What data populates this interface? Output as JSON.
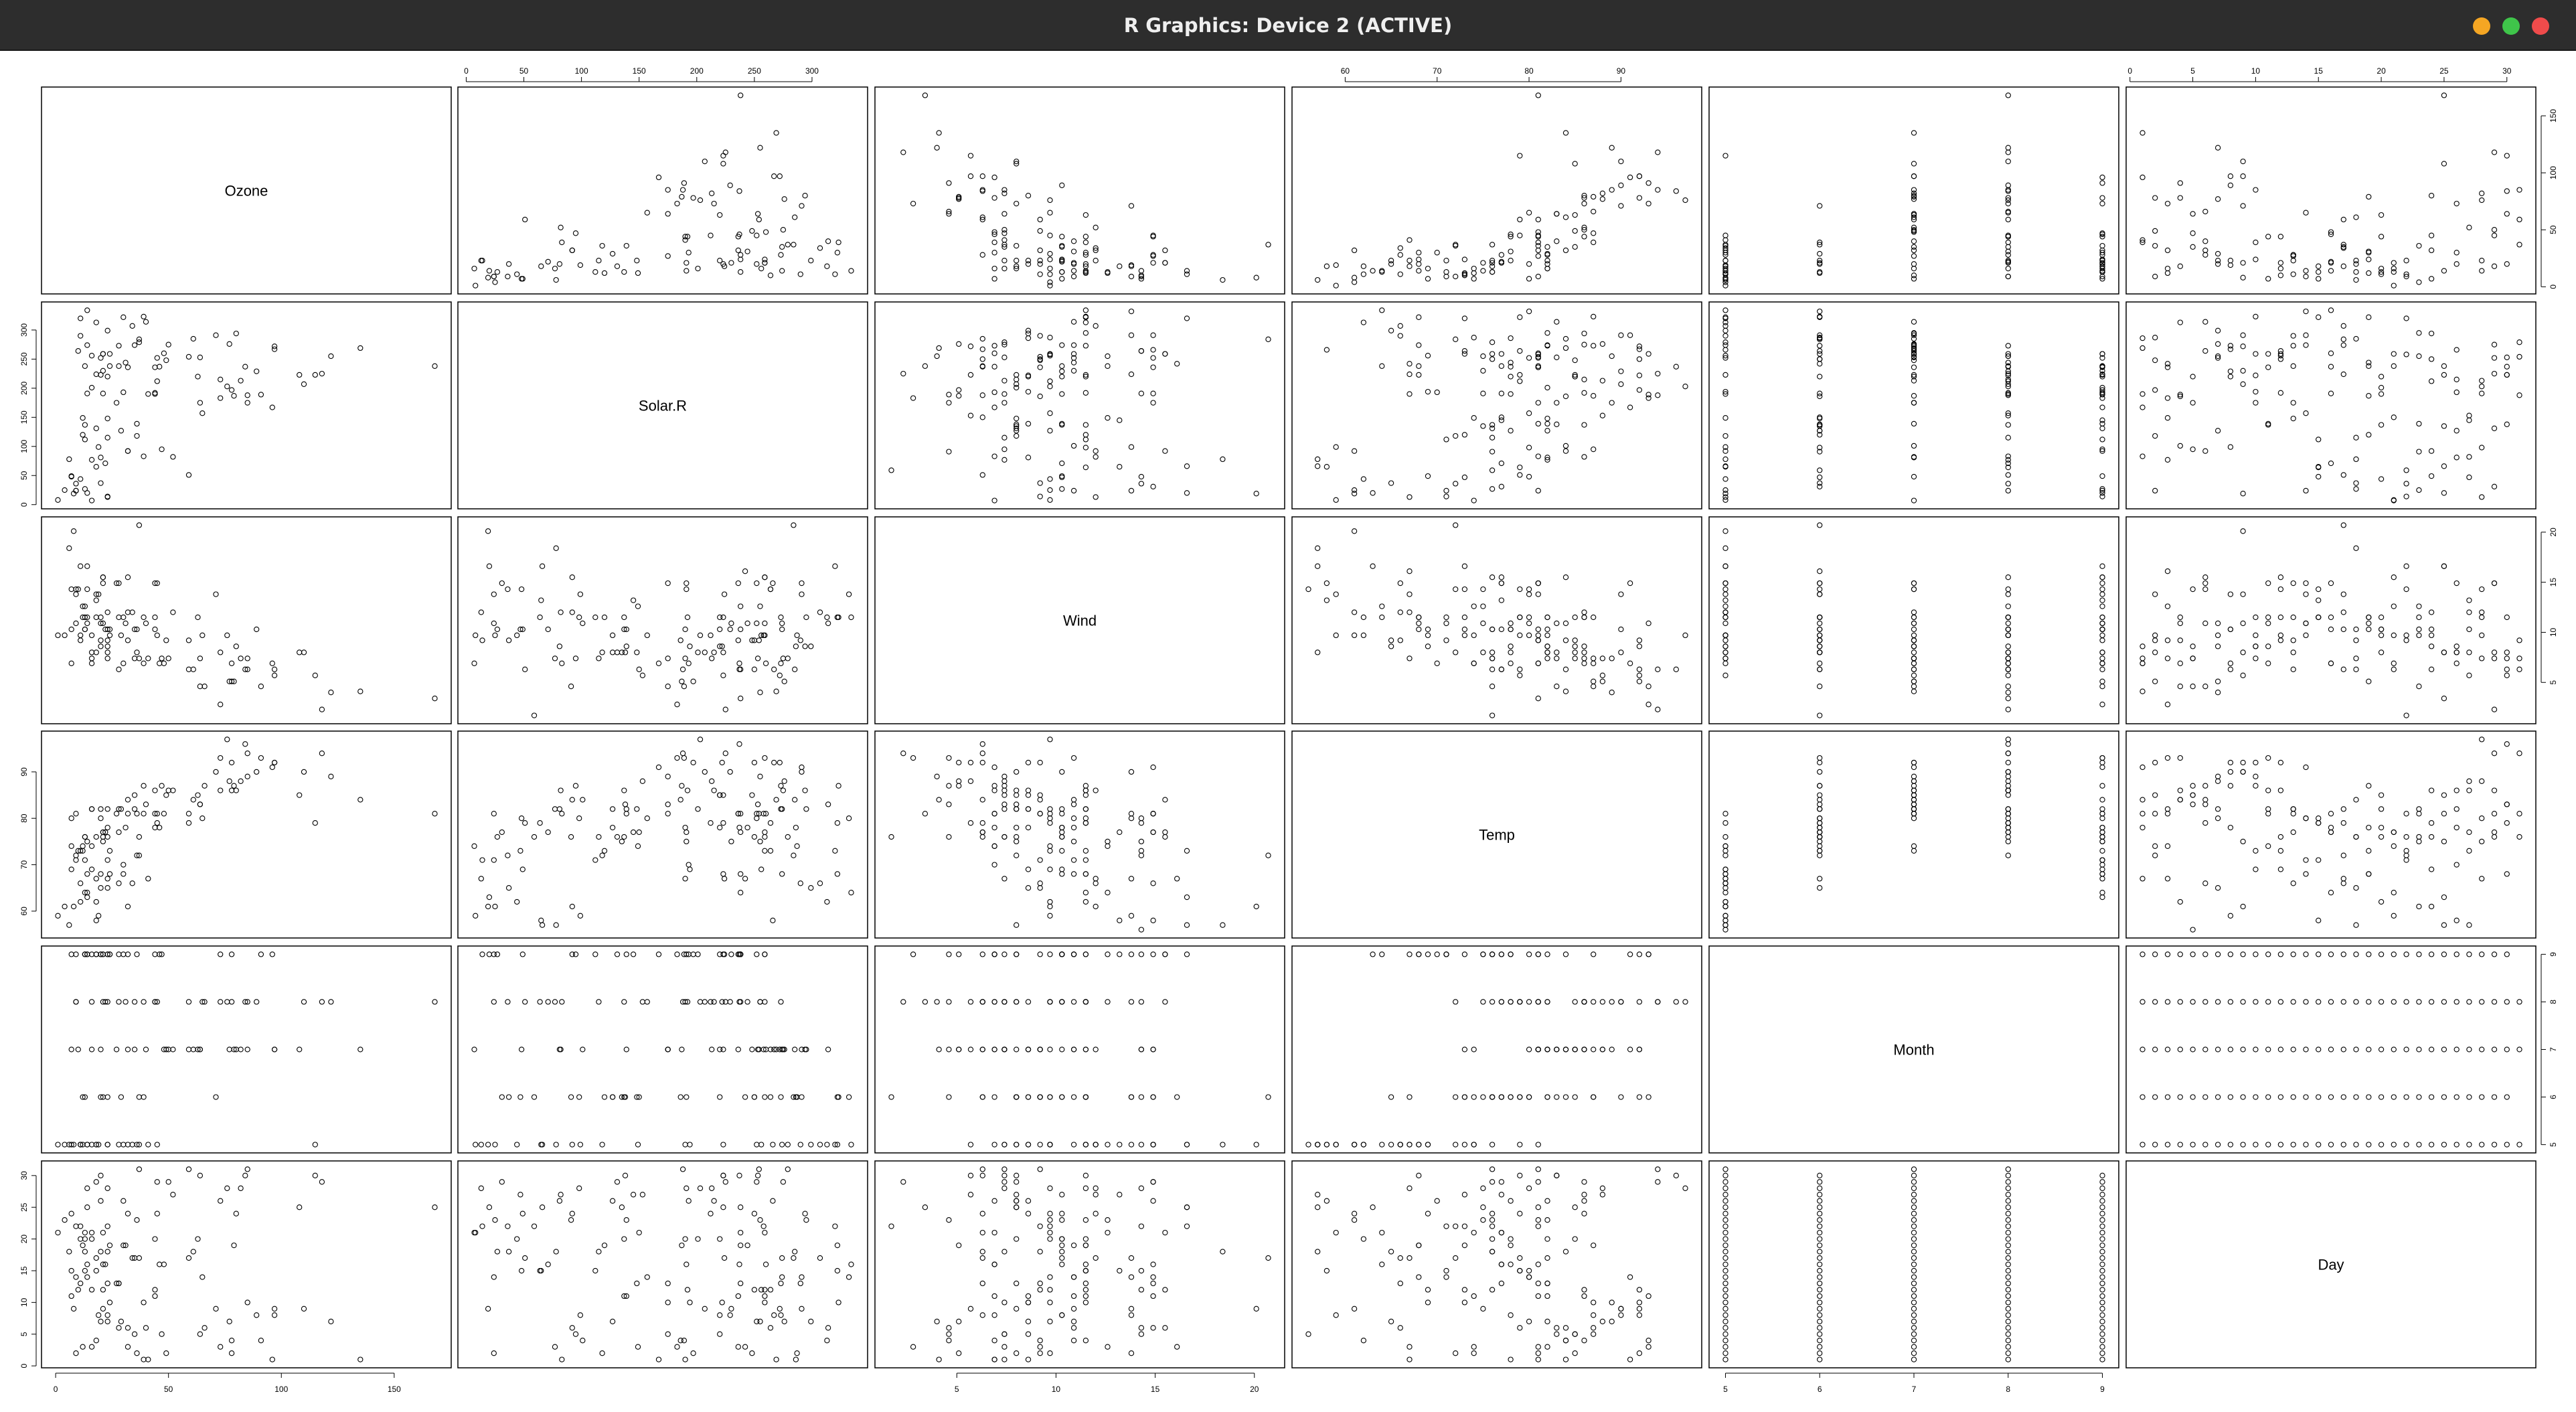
{
  "window": {
    "title": "R Graphics: Device 2 (ACTIVE)",
    "buttons": [
      {
        "name": "minimize",
        "color": "#f5a623"
      },
      {
        "name": "maximize",
        "color": "#3fc54a"
      },
      {
        "name": "close",
        "color": "#ef4b4b"
      }
    ]
  },
  "chart_data": {
    "type": "scatter",
    "variant": "pairs",
    "variables": [
      "Ozone",
      "Solar.R",
      "Wind",
      "Temp",
      "Month",
      "Day"
    ],
    "axes": {
      "top": {
        "Solar.R": [
          0,
          50,
          100,
          150,
          200,
          250,
          300
        ],
        "Temp": [
          60,
          70,
          80,
          90
        ],
        "Day": [
          0,
          5,
          10,
          15,
          20,
          25,
          30
        ]
      },
      "bottom": {
        "Ozone": [
          0,
          50,
          100,
          150
        ],
        "Wind": [
          5,
          10,
          15,
          20
        ],
        "Month": [
          5,
          6,
          7,
          8,
          9
        ]
      },
      "left": {
        "Solar.R": [
          0,
          50,
          100,
          150,
          200,
          250,
          300
        ],
        "Temp": [
          60,
          70,
          80,
          90
        ],
        "Day": [
          0,
          5,
          10,
          15,
          20,
          25,
          30
        ]
      },
      "right": {
        "Ozone": [
          0,
          50,
          100,
          150
        ],
        "Wind": [
          5,
          10,
          15,
          20
        ],
        "Month": [
          5,
          6,
          7,
          8,
          9
        ]
      }
    },
    "ranges": {
      "Ozone": [
        1,
        168
      ],
      "Solar.R": [
        7,
        334
      ],
      "Wind": [
        1.7,
        20.7
      ],
      "Temp": [
        56,
        97
      ],
      "Month": [
        5,
        9
      ],
      "Day": [
        1,
        31
      ]
    },
    "observations": [
      [
        41,
        190,
        7.4,
        67,
        5,
        1
      ],
      [
        36,
        118,
        8,
        72,
        5,
        2
      ],
      [
        12,
        149,
        12.6,
        74,
        5,
        3
      ],
      [
        18,
        313,
        11.5,
        62,
        5,
        4
      ],
      [
        null,
        null,
        14.3,
        56,
        5,
        5
      ],
      [
        28,
        null,
        14.9,
        66,
        5,
        6
      ],
      [
        23,
        299,
        8.6,
        65,
        5,
        7
      ],
      [
        19,
        99,
        13.8,
        59,
        5,
        8
      ],
      [
        8,
        19,
        20.1,
        61,
        5,
        9
      ],
      [
        null,
        194,
        8.6,
        69,
        5,
        10
      ],
      [
        7,
        null,
        6.9,
        74,
        5,
        11
      ],
      [
        16,
        256,
        9.7,
        69,
        5,
        12
      ],
      [
        11,
        290,
        9.2,
        66,
        5,
        13
      ],
      [
        14,
        274,
        10.9,
        68,
        5,
        14
      ],
      [
        18,
        65,
        13.2,
        58,
        5,
        15
      ],
      [
        14,
        334,
        11.5,
        64,
        5,
        16
      ],
      [
        34,
        307,
        12,
        66,
        5,
        17
      ],
      [
        6,
        78,
        18.4,
        57,
        5,
        18
      ],
      [
        30,
        322,
        11.5,
        68,
        5,
        19
      ],
      [
        11,
        44,
        9.7,
        62,
        5,
        20
      ],
      [
        1,
        8,
        9.7,
        59,
        5,
        21
      ],
      [
        11,
        320,
        16.6,
        73,
        5,
        22
      ],
      [
        4,
        25,
        9.7,
        61,
        5,
        23
      ],
      [
        32,
        92,
        12,
        61,
        5,
        24
      ],
      [
        null,
        66,
        16.6,
        57,
        5,
        25
      ],
      [
        null,
        266,
        14.9,
        58,
        5,
        26
      ],
      [
        null,
        null,
        8,
        57,
        5,
        27
      ],
      [
        23,
        13,
        12,
        67,
        5,
        28
      ],
      [
        45,
        252,
        14.9,
        81,
        5,
        29
      ],
      [
        115,
        223,
        5.7,
        79,
        5,
        30
      ],
      [
        37,
        279,
        7.4,
        76,
        5,
        31
      ],
      [
        null,
        286,
        8.6,
        78,
        6,
        1
      ],
      [
        null,
        287,
        9.7,
        74,
        6,
        2
      ],
      [
        null,
        242,
        16.1,
        67,
        6,
        3
      ],
      [
        null,
        186,
        9.2,
        84,
        6,
        4
      ],
      [
        null,
        220,
        8.6,
        85,
        6,
        5
      ],
      [
        null,
        264,
        14.3,
        79,
        6,
        6
      ],
      [
        29,
        127,
        9.7,
        82,
        6,
        7
      ],
      [
        null,
        273,
        6.9,
        87,
        6,
        8
      ],
      [
        71,
        291,
        13.8,
        90,
        6,
        9
      ],
      [
        39,
        323,
        11.5,
        87,
        6,
        10
      ],
      [
        null,
        259,
        10.9,
        93,
        6,
        11
      ],
      [
        null,
        250,
        9.2,
        92,
        6,
        12
      ],
      [
        23,
        148,
        8,
        82,
        6,
        13
      ],
      [
        null,
        332,
        13.8,
        80,
        6,
        14
      ],
      [
        null,
        322,
        11.5,
        79,
        6,
        15
      ],
      [
        21,
        191,
        14.9,
        77,
        6,
        16
      ],
      [
        37,
        284,
        20.7,
        72,
        6,
        17
      ],
      [
        20,
        37,
        9.2,
        65,
        6,
        18
      ],
      [
        12,
        120,
        11.5,
        73,
        6,
        19
      ],
      [
        13,
        137,
        10.3,
        76,
        6,
        20
      ],
      [
        null,
        150,
        6.3,
        77,
        6,
        21
      ],
      [
        null,
        59,
        1.7,
        76,
        6,
        22
      ],
      [
        null,
        91,
        4.6,
        76,
        6,
        23
      ],
      [
        null,
        250,
        6.3,
        76,
        6,
        24
      ],
      [
        null,
        135,
        8,
        75,
        6,
        25
      ],
      [
        null,
        127,
        8,
        78,
        6,
        26
      ],
      [
        null,
        47,
        10.3,
        73,
        6,
        27
      ],
      [
        null,
        98,
        11.5,
        80,
        6,
        28
      ],
      [
        null,
        31,
        14.9,
        77,
        6,
        29
      ],
      [
        null,
        138,
        8,
        83,
        6,
        30
      ],
      [
        135,
        269,
        4.1,
        84,
        7,
        1
      ],
      [
        49,
        248,
        9.2,
        85,
        7,
        2
      ],
      [
        32,
        236,
        9.2,
        81,
        7,
        3
      ],
      [
        null,
        101,
        10.9,
        84,
        7,
        4
      ],
      [
        64,
        175,
        4.6,
        83,
        7,
        5
      ],
      [
        40,
        314,
        10.9,
        83,
        7,
        6
      ],
      [
        77,
        276,
        5.1,
        88,
        7,
        7
      ],
      [
        97,
        267,
        6.3,
        92,
        7,
        8
      ],
      [
        97,
        272,
        5.7,
        92,
        7,
        9
      ],
      [
        85,
        175,
        7.4,
        89,
        7,
        10
      ],
      [
        null,
        139,
        8.6,
        82,
        7,
        11
      ],
      [
        10,
        264,
        14.3,
        73,
        7,
        12
      ],
      [
        27,
        175,
        14.9,
        81,
        7,
        13
      ],
      [
        null,
        291,
        14.9,
        91,
        7,
        14
      ],
      [
        7,
        48,
        14.3,
        80,
        7,
        15
      ],
      [
        48,
        260,
        6.9,
        81,
        7,
        16
      ],
      [
        35,
        274,
        10.3,
        82,
        7,
        17
      ],
      [
        61,
        285,
        6.3,
        84,
        7,
        18
      ],
      [
        79,
        187,
        5.1,
        87,
        7,
        19
      ],
      [
        63,
        220,
        11.5,
        85,
        7,
        20
      ],
      [
        16,
        7,
        6.9,
        74,
        7,
        21
      ],
      [
        null,
        258,
        9.7,
        81,
        7,
        22
      ],
      [
        null,
        295,
        11.5,
        82,
        7,
        23
      ],
      [
        80,
        294,
        8.6,
        86,
        7,
        24
      ],
      [
        108,
        223,
        8,
        85,
        7,
        25
      ],
      [
        20,
        81,
        8.6,
        82,
        7,
        26
      ],
      [
        52,
        82,
        12,
        86,
        7,
        27
      ],
      [
        82,
        213,
        7.4,
        88,
        7,
        28
      ],
      [
        50,
        275,
        7.4,
        86,
        7,
        29
      ],
      [
        64,
        253,
        7.4,
        83,
        7,
        30
      ],
      [
        59,
        254,
        9.2,
        81,
        7,
        31
      ],
      [
        39,
        83,
        6.9,
        81,
        8,
        1
      ],
      [
        9,
        24,
        13.8,
        81,
        8,
        2
      ],
      [
        16,
        77,
        7.4,
        82,
        8,
        3
      ],
      [
        78,
        null,
        6.9,
        86,
        8,
        4
      ],
      [
        35,
        null,
        7.4,
        85,
        8,
        5
      ],
      [
        66,
        null,
        4.6,
        87,
        8,
        6
      ],
      [
        122,
        255,
        4,
        89,
        8,
        7
      ],
      [
        89,
        229,
        10.3,
        90,
        8,
        8
      ],
      [
        110,
        207,
        8,
        90,
        8,
        9
      ],
      [
        null,
        222,
        8.6,
        92,
        8,
        10
      ],
      [
        null,
        137,
        11.5,
        86,
        8,
        11
      ],
      [
        44,
        192,
        11.5,
        86,
        8,
        12
      ],
      [
        28,
        273,
        11.5,
        82,
        8,
        13
      ],
      [
        65,
        157,
        9.7,
        80,
        8,
        14
      ],
      [
        null,
        64,
        11.5,
        79,
        8,
        15
      ],
      [
        22,
        71,
        10.3,
        77,
        8,
        16
      ],
      [
        59,
        51,
        6.3,
        79,
        8,
        17
      ],
      [
        23,
        115,
        7.4,
        76,
        8,
        18
      ],
      [
        31,
        244,
        10.9,
        78,
        8,
        19
      ],
      [
        44,
        190,
        10.3,
        78,
        8,
        20
      ],
      [
        21,
        259,
        15.5,
        77,
        8,
        21
      ],
      [
        9,
        36,
        14.3,
        72,
        8,
        22
      ],
      [
        null,
        255,
        12.6,
        75,
        8,
        23
      ],
      [
        45,
        212,
        9.7,
        79,
        8,
        24
      ],
      [
        168,
        238,
        3.4,
        81,
        8,
        25
      ],
      [
        73,
        215,
        8,
        86,
        8,
        26
      ],
      [
        null,
        153,
        5.7,
        88,
        8,
        27
      ],
      [
        76,
        203,
        9.7,
        97,
        8,
        28
      ],
      [
        118,
        225,
        2.3,
        94,
        8,
        29
      ],
      [
        84,
        237,
        6.3,
        96,
        8,
        30
      ],
      [
        85,
        188,
        6.3,
        94,
        8,
        31
      ],
      [
        96,
        167,
        6.9,
        91,
        9,
        1
      ],
      [
        78,
        197,
        5.1,
        92,
        9,
        2
      ],
      [
        73,
        183,
        2.8,
        93,
        9,
        3
      ],
      [
        91,
        189,
        4.6,
        93,
        9,
        4
      ],
      [
        47,
        95,
        7.4,
        87,
        9,
        5
      ],
      [
        32,
        92,
        15.5,
        84,
        9,
        6
      ],
      [
        20,
        252,
        10.9,
        80,
        9,
        7
      ],
      [
        23,
        220,
        10.3,
        78,
        9,
        8
      ],
      [
        21,
        230,
        10.9,
        75,
        9,
        9
      ],
      [
        24,
        259,
        9.7,
        73,
        9,
        10
      ],
      [
        44,
        236,
        14.9,
        81,
        9,
        11
      ],
      [
        21,
        259,
        15.5,
        76,
        9,
        12
      ],
      [
        28,
        238,
        6.3,
        77,
        9,
        13
      ],
      [
        9,
        24,
        10.9,
        71,
        9,
        14
      ],
      [
        13,
        112,
        11.5,
        71,
        9,
        15
      ],
      [
        46,
        237,
        6.9,
        78,
        9,
        16
      ],
      [
        18,
        224,
        13.8,
        67,
        9,
        17
      ],
      [
        13,
        27,
        10.3,
        76,
        9,
        18
      ],
      [
        24,
        238,
        10.3,
        68,
        9,
        19
      ],
      [
        16,
        201,
        8,
        82,
        9,
        20
      ],
      [
        13,
        238,
        12.6,
        64,
        9,
        21
      ],
      [
        23,
        14,
        9.2,
        71,
        9,
        22
      ],
      [
        36,
        139,
        10.3,
        81,
        9,
        23
      ],
      [
        7,
        49,
        10.3,
        69,
        9,
        24
      ],
      [
        14,
        20,
        16.6,
        63,
        9,
        25
      ],
      [
        30,
        193,
        6.9,
        70,
        9,
        26
      ],
      [
        null,
        145,
        13.2,
        77,
        9,
        27
      ],
      [
        14,
        191,
        14.3,
        75,
        9,
        28
      ],
      [
        18,
        131,
        8,
        76,
        9,
        29
      ],
      [
        20,
        223,
        11.5,
        68,
        9,
        30
      ]
    ]
  }
}
